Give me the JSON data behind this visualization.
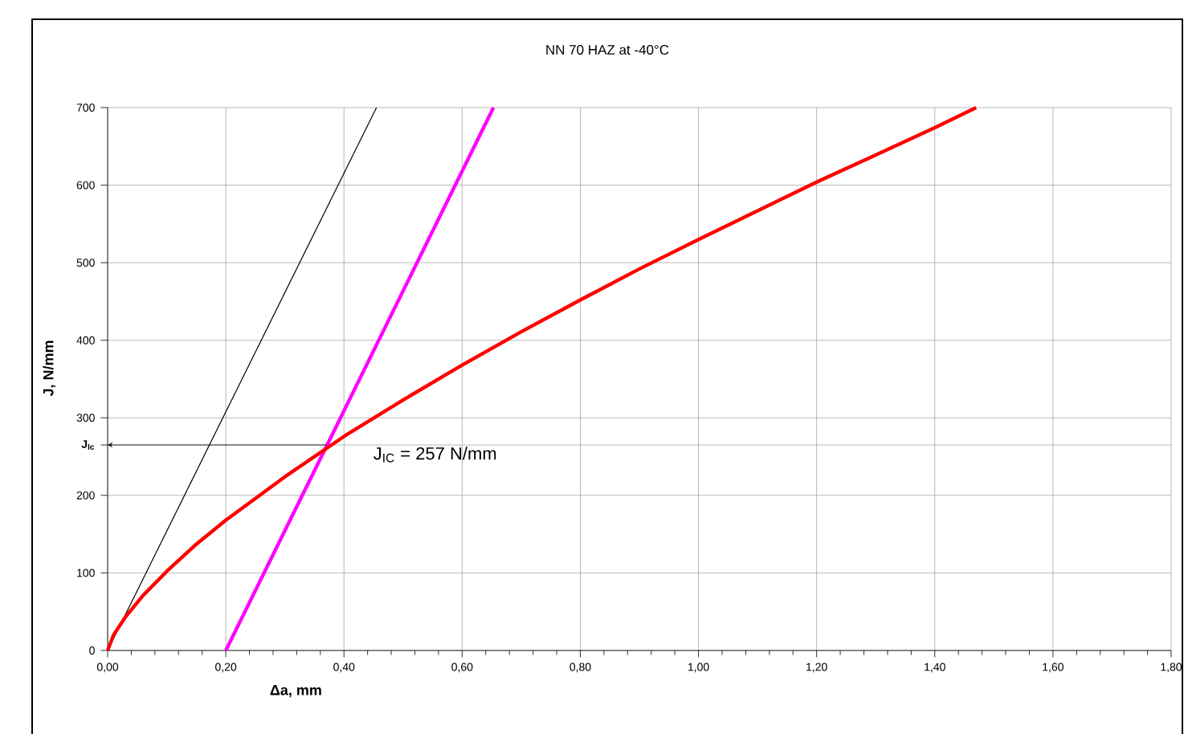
{
  "chart_data": {
    "type": "line",
    "title": "NN 70 HAZ at -40°C",
    "xlabel": "**Δa**, mm",
    "ylabel": "J, N/mm",
    "xlim": [
      0,
      1.8
    ],
    "ylim": [
      0,
      700
    ],
    "xticks": [
      {
        "value": 0,
        "label": "0,00"
      },
      {
        "value": 0.2,
        "label": "0,20"
      },
      {
        "value": 0.4,
        "label": "0,40"
      },
      {
        "value": 0.6,
        "label": "0,60"
      },
      {
        "value": 0.8,
        "label": "0,80"
      },
      {
        "value": 1.0,
        "label": "1,00"
      },
      {
        "value": 1.2,
        "label": "1,20"
      },
      {
        "value": 1.4,
        "label": "1,40"
      },
      {
        "value": 1.6,
        "label": "1,60"
      },
      {
        "value": 1.8,
        "label": "1,80"
      }
    ],
    "yticks": [
      0,
      100,
      200,
      300,
      400,
      500,
      600,
      700,
      {
        "value": 265,
        "label": "J$_{Ic}$"
      }
    ],
    "grid": true,
    "marker": "none",
    "line_style": "solid",
    "series": [
      {
        "color": "#000000",
        "x": [
          0,
          0.455
        ],
        "values": [
          0,
          700
        ]
      },
      {
        "color": "#ff00ff",
        "x": [
          0.2,
          0.653
        ],
        "values": [
          0,
          700
        ]
      },
      {
        "color": "#ff0000",
        "x": [
          0,
          0.01,
          0.03,
          0.06,
          0.1,
          0.15,
          0.2,
          0.3,
          0.4,
          0.5,
          0.6,
          0.7,
          0.8,
          0.9,
          1.0,
          1.1,
          1.2,
          1.3,
          1.4,
          1.47
        ],
        "values": [
          0,
          20,
          43,
          71,
          102,
          137,
          168,
          224,
          276,
          323,
          368,
          411,
          452,
          492,
          530,
          567,
          604,
          639,
          674,
          700
        ]
      }
    ],
    "annotations": [
      {
        "text": "J$_{IC}$ = 257 N/mm",
        "x": 0.37,
        "y": 265
      }
    ]
  }
}
